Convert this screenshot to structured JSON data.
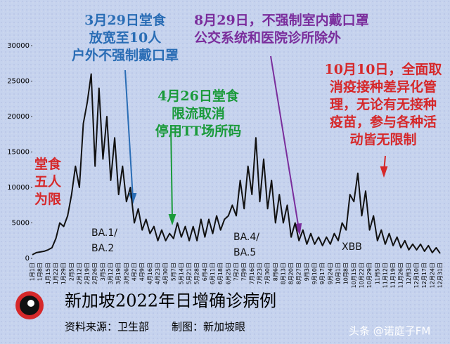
{
  "chart_data": {
    "type": "line",
    "title": "新加坡2022年日增确诊病例",
    "source": "资料来源：卫生部",
    "credit": "制图：新加坡眼",
    "watermark": "头条 @诺庭子FM",
    "color": "#111111",
    "categories": [
      "1月1日",
      null,
      "1月8日",
      null,
      "1月15日",
      null,
      "1月22日",
      null,
      "1月29日",
      null,
      "2月5日",
      null,
      "2月12日",
      null,
      "2月19日",
      null,
      "2月26日",
      null,
      "3月5日",
      null,
      "3月12日",
      null,
      "3月19日",
      null,
      "3月26日",
      null,
      "4月2日",
      null,
      "4月9日",
      null,
      "4月16日",
      null,
      "4月23日",
      null,
      "4月30日",
      null,
      "5月7日",
      null,
      "5月14日",
      null,
      "5月21日",
      null,
      "5月28日",
      null,
      "6月4日",
      null,
      "6月11日",
      null,
      "6月18日",
      null,
      "6月25日",
      null,
      "7月2日",
      null,
      "7月9日",
      null,
      "7月16日",
      null,
      "7月23日",
      null,
      "7月30日",
      null,
      "8月6日",
      null,
      "8月13日",
      null,
      "8月20日",
      null,
      "8月27日",
      null,
      "9月3日",
      null,
      "9月10日",
      null,
      "9月17日",
      null,
      "9月24日",
      null,
      "10月1日",
      null,
      "10月8日",
      null,
      "10月15日",
      null,
      "10月22日",
      null,
      "10月29日",
      null,
      "11月5日",
      null,
      "11月12日",
      null,
      "11月19日",
      null,
      "11月26日",
      null,
      "12月3日",
      null,
      "12月10日",
      null,
      "12月17日",
      null,
      "12月24日",
      null,
      "12月31日"
    ],
    "values": [
      500,
      800,
      900,
      1000,
      1200,
      1500,
      2800,
      5000,
      4500,
      6000,
      9000,
      13000,
      10000,
      19000,
      22000,
      26000,
      13000,
      24000,
      14000,
      20000,
      11000,
      17000,
      9000,
      13000,
      8000,
      10000,
      5000,
      7000,
      4000,
      5500,
      3500,
      4500,
      2500,
      4000,
      2500,
      3500,
      2800,
      5000,
      3000,
      4500,
      2500,
      4500,
      2500,
      5500,
      3000,
      5500,
      3500,
      6000,
      4000,
      5500,
      6000,
      7500,
      6000,
      11000,
      7000,
      13000,
      9000,
      17000,
      8000,
      14000,
      7000,
      11000,
      5000,
      9000,
      5000,
      7500,
      3000,
      5000,
      2500,
      4000,
      2000,
      3500,
      2000,
      3000,
      1800,
      3000,
      2000,
      3500,
      2500,
      5000,
      4000,
      9000,
      8000,
      12000,
      6000,
      9500,
      4000,
      6000,
      2500,
      4000,
      2000,
      3500,
      1800,
      3000,
      1500,
      2500,
      1200,
      2000,
      1200,
      2000,
      1000,
      1800,
      800,
      1500,
      700
    ],
    "ylim": [
      0,
      30000
    ],
    "yticks": [
      0,
      5000,
      10000,
      15000,
      20000,
      25000,
      30000
    ],
    "annotations": [
      {
        "lines": [
          "3月29日堂食",
          "放宽至10人",
          "户外不强制戴口罩"
        ],
        "color": "#2a6db5"
      },
      {
        "lines": [
          "4月26日堂食",
          "限流取消",
          "停用TT场所码"
        ],
        "color": "#1a9a3a"
      },
      {
        "lines": [
          "8月29日，不强制室内戴口罩",
          "公交系统和医院诊所除外"
        ],
        "color": "#7a2d9c"
      },
      {
        "lines": [
          "10月10日，全面取",
          "消疫接种差异化管",
          "理，无论有无接种",
          "疫苗，参与各种活",
          "动皆无限制"
        ],
        "color": "#d6282a"
      },
      {
        "lines": [
          "堂食",
          "五人",
          "为限"
        ],
        "color": "#d6282a"
      }
    ],
    "variants": [
      [
        "BA.1/",
        "BA.2"
      ],
      [
        "BA.4/",
        "BA.5"
      ],
      [
        "XBB"
      ]
    ]
  }
}
